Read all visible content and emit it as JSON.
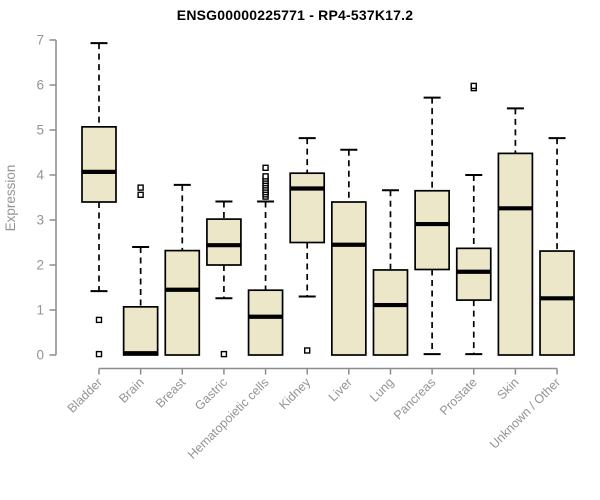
{
  "title": "ENSG00000225771 - RP4-537K17.2",
  "chart_data": {
    "type": "boxplot",
    "title": "ENSG00000225771 - RP4-537K17.2",
    "xlabel": "",
    "ylabel": "Expression",
    "ylim": [
      0,
      7
    ],
    "yticks": [
      0,
      1,
      2,
      3,
      4,
      5,
      6,
      7
    ],
    "grid": false,
    "legend": "none",
    "box_fill": "#EDE7CA",
    "box_stroke": "#000000",
    "median_color": "#000000",
    "axis_color": "#8c8c8c",
    "tick_label_color": "#949494",
    "outlier_marker": "open-square",
    "categories": [
      "Bladder",
      "Brain",
      "Breast",
      "Gastric",
      "Hematopoietic cells",
      "Kidney",
      "Liver",
      "Lung",
      "Pancreas",
      "Prostate",
      "Skin",
      "Unknown / Other"
    ],
    "series": [
      {
        "category": "Bladder",
        "whisker_low": 1.42,
        "q1": 3.4,
        "median": 4.07,
        "q3": 5.07,
        "whisker_high": 6.93,
        "outliers": [
          0.78,
          0.02
        ]
      },
      {
        "category": "Brain",
        "whisker_low": 0.0,
        "q1": 0.0,
        "median": 0.04,
        "q3": 1.07,
        "whisker_high": 2.4,
        "outliers": [
          3.56,
          3.72
        ]
      },
      {
        "category": "Breast",
        "whisker_low": 0.0,
        "q1": 0.0,
        "median": 1.45,
        "q3": 2.32,
        "whisker_high": 3.78,
        "outliers": []
      },
      {
        "category": "Gastric",
        "whisker_low": 1.26,
        "q1": 2.0,
        "median": 2.44,
        "q3": 3.02,
        "whisker_high": 3.41,
        "outliers": [
          0.02
        ]
      },
      {
        "category": "Hematopoietic cells",
        "whisker_low": 0.0,
        "q1": 0.0,
        "median": 0.85,
        "q3": 1.44,
        "whisker_high": 3.41,
        "outliers": [
          3.52,
          3.57,
          3.62,
          3.67,
          3.72,
          3.77,
          3.82,
          3.87,
          3.92,
          3.97,
          4.16
        ]
      },
      {
        "category": "Kidney",
        "whisker_low": 1.3,
        "q1": 2.5,
        "median": 3.7,
        "q3": 4.04,
        "whisker_high": 4.82,
        "outliers": [
          0.1
        ]
      },
      {
        "category": "Liver",
        "whisker_low": 0.0,
        "q1": 0.0,
        "median": 2.45,
        "q3": 3.4,
        "whisker_high": 4.56,
        "outliers": []
      },
      {
        "category": "Lung",
        "whisker_low": 0.0,
        "q1": 0.0,
        "median": 1.11,
        "q3": 1.89,
        "whisker_high": 3.66,
        "outliers": []
      },
      {
        "category": "Pancreas",
        "whisker_low": 0.02,
        "q1": 1.9,
        "median": 2.91,
        "q3": 3.65,
        "whisker_high": 5.72,
        "outliers": []
      },
      {
        "category": "Prostate",
        "whisker_low": 0.02,
        "q1": 1.22,
        "median": 1.85,
        "q3": 2.37,
        "whisker_high": 4.0,
        "outliers": [
          5.93,
          5.98
        ]
      },
      {
        "category": "Skin",
        "whisker_low": 0.0,
        "q1": 0.0,
        "median": 3.26,
        "q3": 4.48,
        "whisker_high": 5.48,
        "outliers": []
      },
      {
        "category": "Unknown / Other",
        "whisker_low": 0.0,
        "q1": 0.0,
        "median": 1.26,
        "q3": 2.31,
        "whisker_high": 4.82,
        "outliers": []
      }
    ]
  }
}
